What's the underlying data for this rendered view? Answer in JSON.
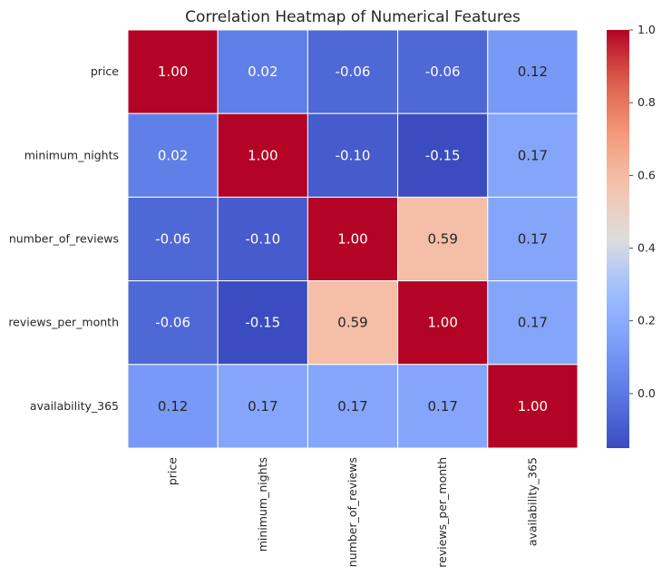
{
  "chart_data": {
    "type": "heatmap",
    "title": "Correlation Heatmap of Numerical Features",
    "rows": [
      "price",
      "minimum_nights",
      "number_of_reviews",
      "reviews_per_month",
      "availability_365"
    ],
    "columns": [
      "price",
      "minimum_nights",
      "number_of_reviews",
      "reviews_per_month",
      "availability_365"
    ],
    "values": [
      [
        1.0,
        0.02,
        -0.06,
        -0.06,
        0.12
      ],
      [
        0.02,
        1.0,
        -0.1,
        -0.15,
        0.17
      ],
      [
        -0.06,
        -0.1,
        1.0,
        0.59,
        0.17
      ],
      [
        -0.06,
        -0.15,
        0.59,
        1.0,
        0.17
      ],
      [
        0.12,
        0.17,
        0.17,
        0.17,
        1.0
      ]
    ],
    "value_format": "0.00",
    "colormap": "coolwarm",
    "color_range": [
      -0.15,
      1.0
    ],
    "colorbar": {
      "position": "right",
      "ticks": [
        0.0,
        0.2,
        0.4,
        0.6,
        0.8,
        1.0
      ],
      "tick_labels": [
        "0.0",
        "0.2",
        "0.4",
        "0.6",
        "0.8",
        "1.0"
      ]
    },
    "grid": false,
    "cell_separator_color": "#ffffff"
  }
}
